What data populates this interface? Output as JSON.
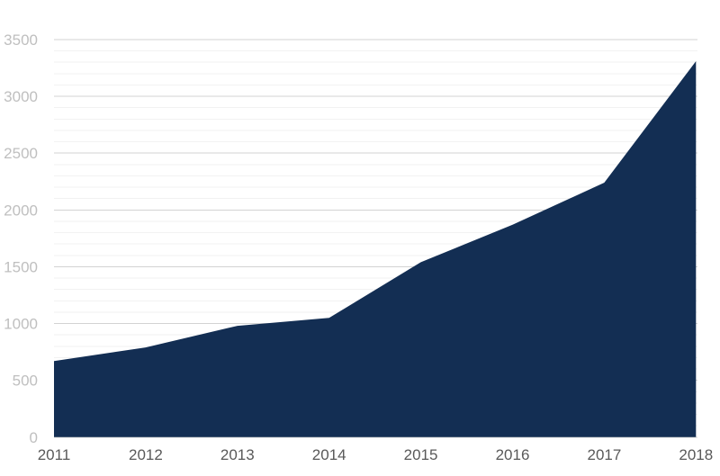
{
  "chart_data": {
    "type": "area",
    "title": "",
    "xlabel": "",
    "ylabel": "",
    "categories": [
      "2011",
      "2012",
      "2013",
      "2014",
      "2015",
      "2016",
      "2017",
      "2018"
    ],
    "values": [
      670,
      790,
      980,
      1050,
      1540,
      1870,
      2240,
      3310
    ],
    "ylim": [
      0,
      3500
    ],
    "y_major_step": 500,
    "y_minor_step": 100,
    "y_tick_labels": [
      "0",
      "500",
      "1000",
      "1500",
      "2000",
      "2500",
      "3000",
      "3500"
    ],
    "grid": "horizontal major and minor gridlines, no vertical gridlines",
    "legend": "none",
    "colors": {
      "area_fill": "#132e53",
      "major_gridline": "#d3d3d3",
      "minor_gridline": "#f2f2f2",
      "y_tick_label": "#bfbfbf",
      "x_tick_label": "#595959",
      "background": "#ffffff"
    }
  }
}
